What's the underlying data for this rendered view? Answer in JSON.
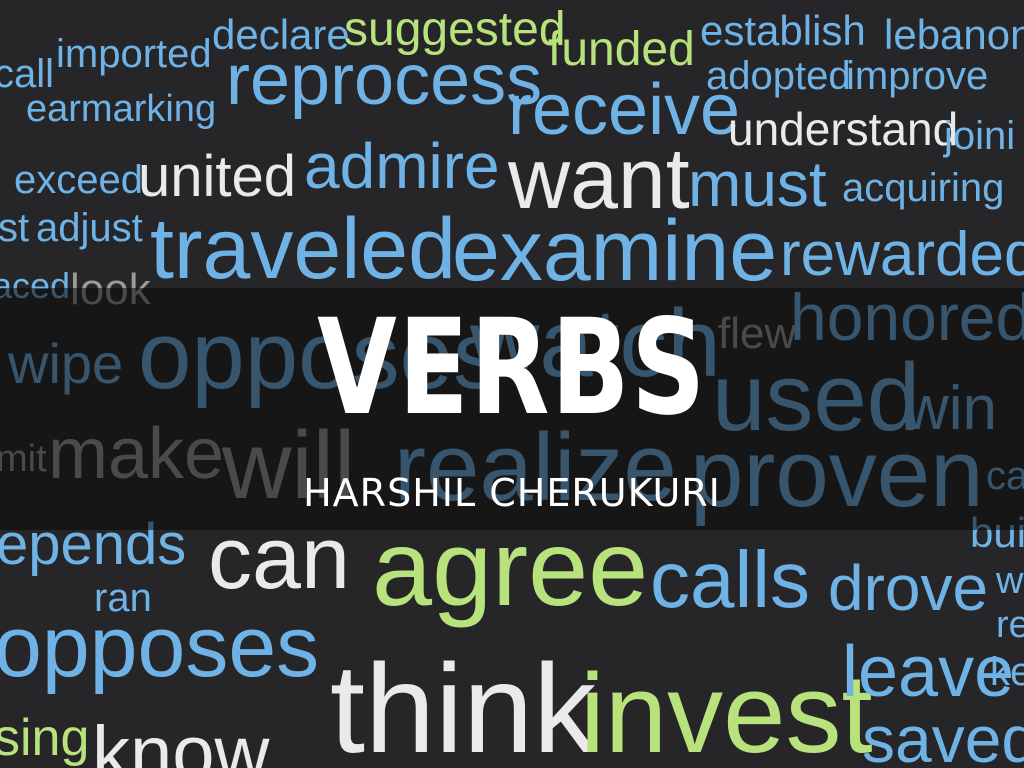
{
  "slide": {
    "title": "VERBS",
    "author": "HARSHIL CHERUKURI"
  },
  "colors": {
    "background": "#262628",
    "blue": "#6fb2e6",
    "green": "#b7e27c",
    "white": "#eaeaea",
    "gray": "#9a9a9a"
  },
  "words": [
    "call",
    "imported",
    "declare",
    "suggested",
    "funded",
    "establish",
    "lebanon",
    "earmarking",
    "reprocess",
    "receive",
    "adopted",
    "improve",
    "understand",
    "joini",
    "exceed",
    "united",
    "admire",
    "want",
    "must",
    "acquiring",
    "st",
    "adjust",
    "traveled",
    "examine",
    "rewarded",
    "aced",
    "look",
    "flew",
    "honored",
    "wipe",
    "opposes",
    "watch",
    "used",
    "win",
    "mit",
    "make",
    "will",
    "realize",
    "proven",
    "ca",
    "epends",
    "can",
    "agree",
    "calls",
    "drove",
    "bui",
    "ran",
    "w",
    "opposes",
    "re",
    "think",
    "invest",
    "leave",
    "ke",
    "sing",
    "know",
    "saved"
  ]
}
